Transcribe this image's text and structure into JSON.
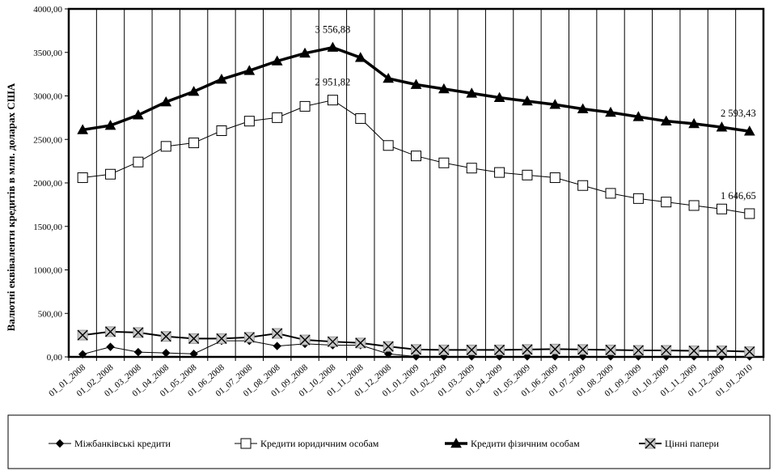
{
  "chart_data": {
    "type": "line",
    "ylabel": "Валютні еквіваленти кредитів в млн. доларах США",
    "xlabel": "",
    "ylim": [
      0,
      4000
    ],
    "yticks": [
      "0,00",
      "500,00",
      "1000,00",
      "1500,00",
      "2000,00",
      "2500,00",
      "3000,00",
      "3500,00",
      "4000,00"
    ],
    "grid": "vertical",
    "legend_position": "bottom",
    "categories": [
      "01_01_2008",
      "01_02_2008",
      "01_03_2008",
      "01_04_2008",
      "01_05_2008",
      "01_06_2008",
      "01_07_2008",
      "01_08_2008",
      "01_09_2008",
      "01_10_2008",
      "01_11_2008",
      "01_12_2008",
      "01_01_2009",
      "01_02_2009",
      "01_03_2009",
      "01_04_2009",
      "01_05_2009",
      "01_06_2009",
      "01_07_2009",
      "01_08_2009",
      "01_09_2009",
      "01_10_2009",
      "01_11_2009",
      "01_12_2009",
      "01_01_2010"
    ],
    "series": [
      {
        "name": "Міжбанківські кредити",
        "marker": "diamond-filled",
        "color": "#000000",
        "line_width": "thin",
        "values": [
          30,
          115,
          55,
          45,
          35,
          185,
          185,
          125,
          150,
          135,
          135,
          35,
          5,
          5,
          5,
          5,
          5,
          5,
          5,
          5,
          5,
          5,
          5,
          5,
          5
        ]
      },
      {
        "name": "Кредити юридичним особам",
        "marker": "square-open",
        "color": "#000000",
        "line_width": "thin",
        "values": [
          2060,
          2100,
          2240,
          2420,
          2460,
          2600,
          2710,
          2750,
          2880,
          2951.82,
          2740,
          2430,
          2310,
          2230,
          2170,
          2120,
          2090,
          2060,
          1970,
          1880,
          1820,
          1780,
          1740,
          1700,
          1646.65
        ]
      },
      {
        "name": "Кредити фізичним особам",
        "marker": "triangle-filled",
        "color": "#000000",
        "line_width": "thick",
        "values": [
          2610,
          2660,
          2780,
          2930,
          3050,
          3190,
          3290,
          3400,
          3490,
          3556.88,
          3440,
          3200,
          3130,
          3080,
          3030,
          2980,
          2940,
          2900,
          2850,
          2810,
          2760,
          2710,
          2680,
          2640,
          2593.43
        ]
      },
      {
        "name": "Цінні папери",
        "marker": "x-box",
        "color": "#000000",
        "line_width": "medium",
        "values": [
          250,
          290,
          280,
          235,
          210,
          210,
          225,
          270,
          195,
          175,
          160,
          120,
          85,
          80,
          80,
          80,
          85,
          90,
          85,
          80,
          75,
          75,
          70,
          70,
          60
        ]
      }
    ],
    "annotations": [
      {
        "text": "3 556,88",
        "series": 2,
        "index": 9
      },
      {
        "text": "2 951,82",
        "series": 1,
        "index": 9
      },
      {
        "text": "2 593,43",
        "series": 2,
        "index": 24
      },
      {
        "text": "1 646,65",
        "series": 1,
        "index": 24
      }
    ]
  }
}
